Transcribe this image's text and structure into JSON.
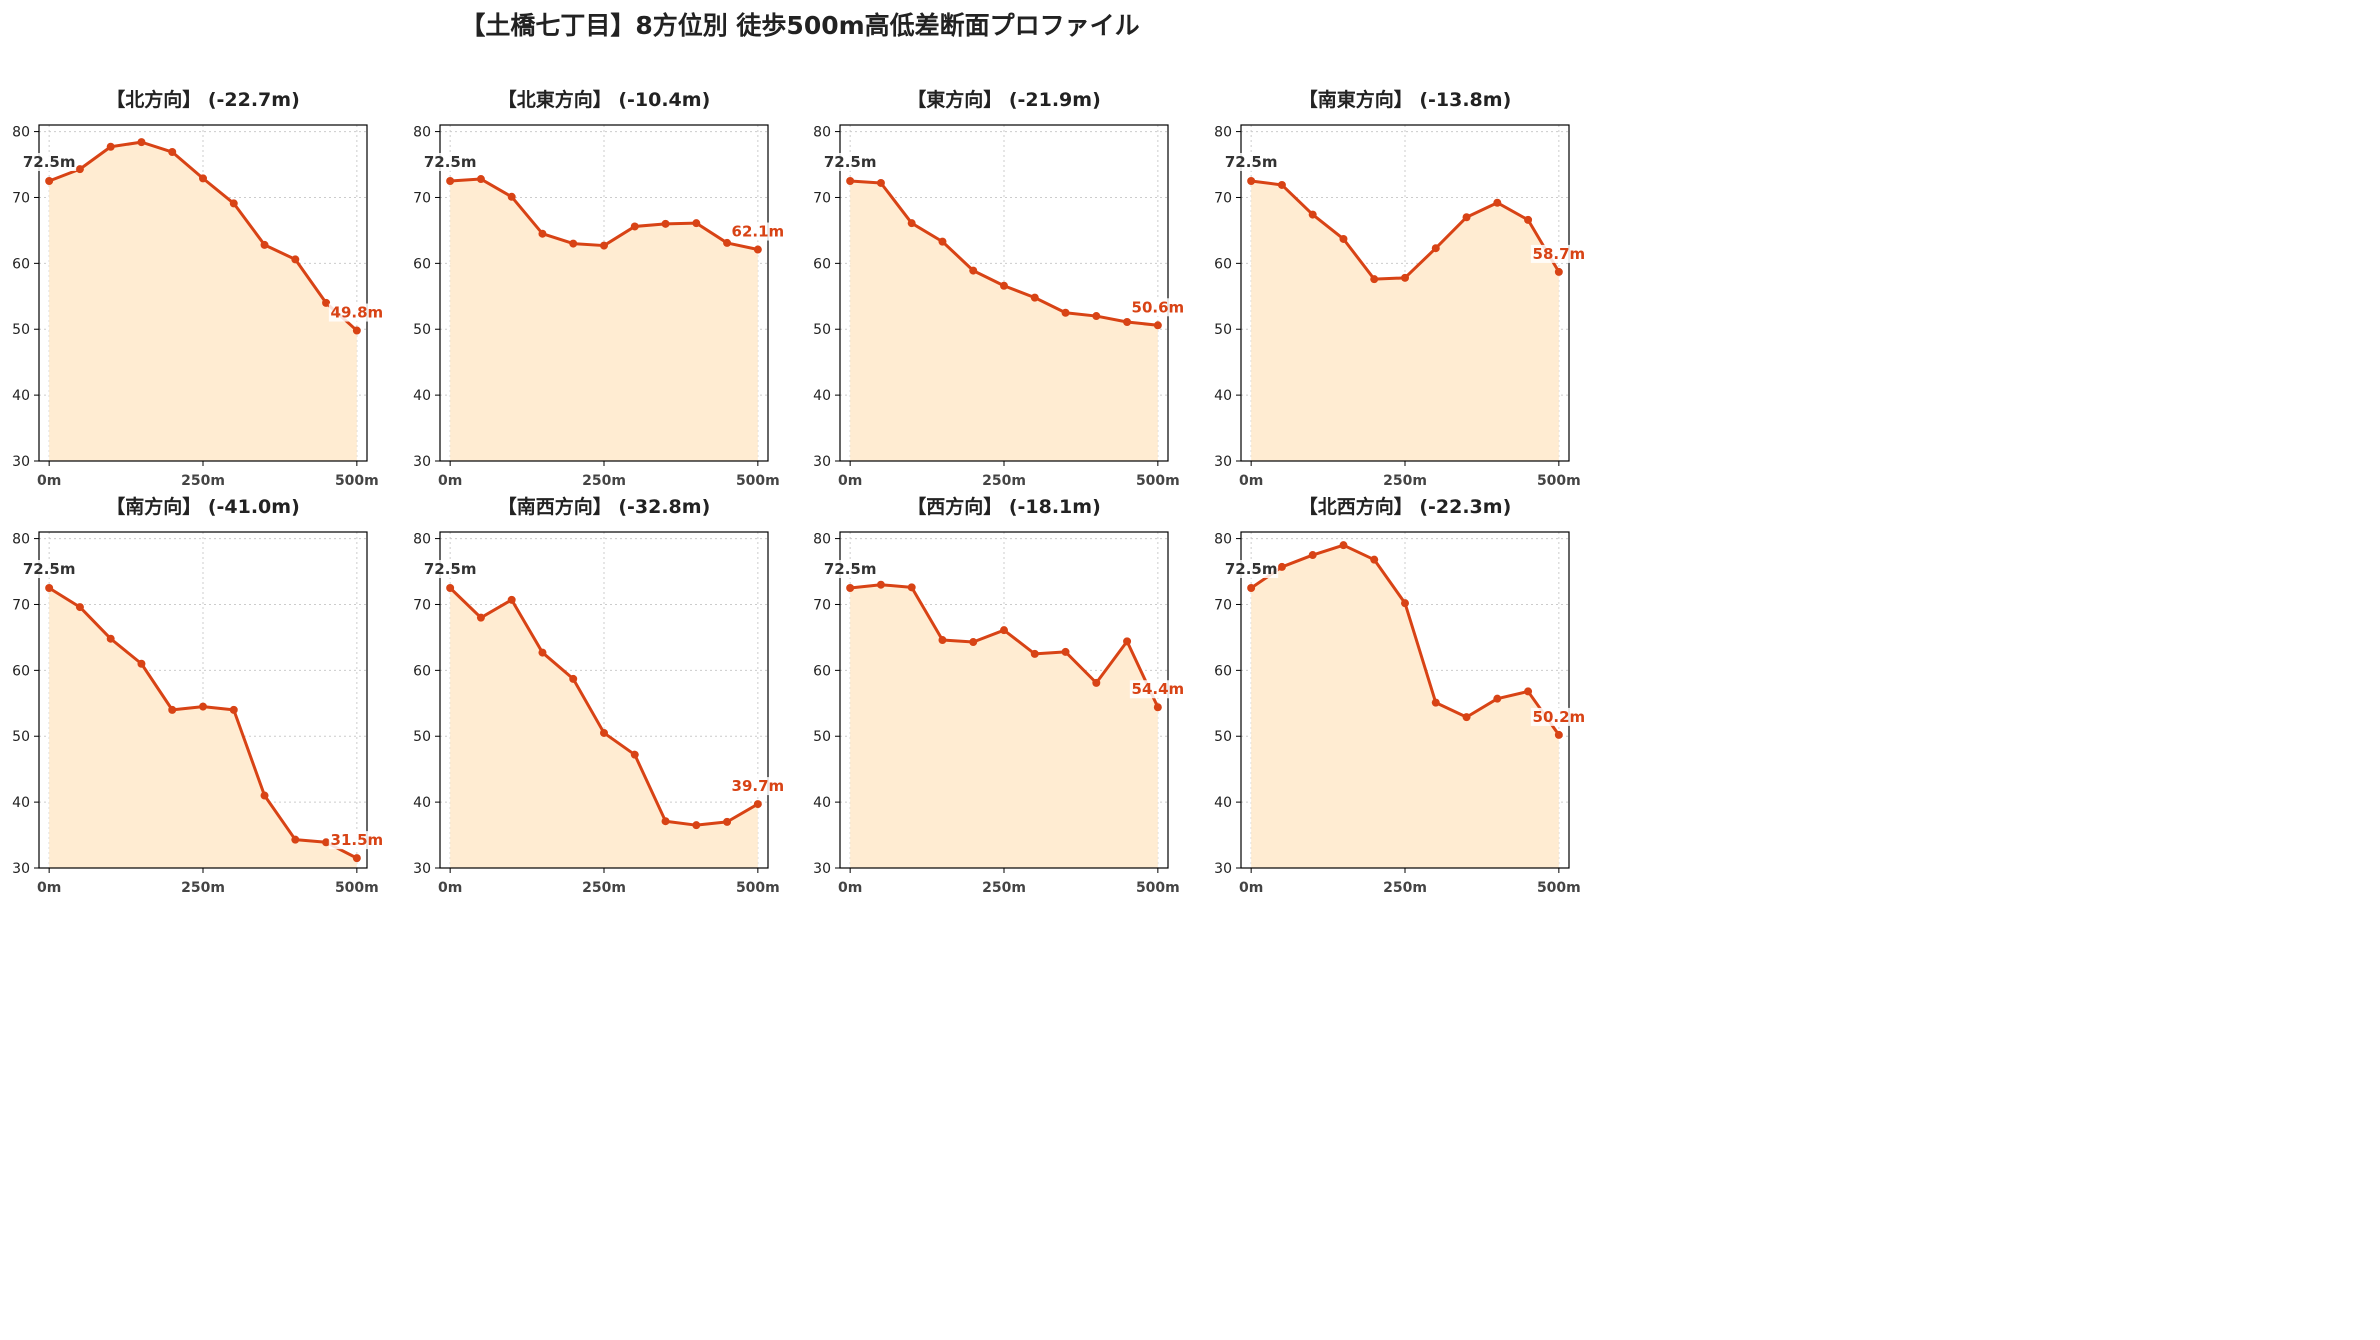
{
  "page": {
    "title": "【土橋七丁目】8方位別 徒歩500m高低差断面プロファイル"
  },
  "colors": {
    "line": "#d84315",
    "fill": "#ffecd2",
    "axis": "#000000",
    "grid": "#cccccc",
    "start_label": "#333333",
    "end_label": "#d84315"
  },
  "chart_data": [
    {
      "type": "area",
      "title": "【北方向】 (-22.7m)",
      "x": [
        0,
        50,
        100,
        150,
        200,
        250,
        300,
        350,
        400,
        450,
        500
      ],
      "values": [
        72.5,
        74.3,
        77.7,
        78.4,
        76.9,
        72.9,
        69.1,
        62.8,
        60.6,
        54.0,
        49.8
      ],
      "start_label": "72.5m",
      "end_label": "49.8m",
      "xticks": [
        "0m",
        "250m",
        "500m"
      ],
      "ylim": [
        30,
        81
      ],
      "yticks": [
        30,
        40,
        50,
        60,
        70,
        80
      ],
      "grid": true
    },
    {
      "type": "area",
      "title": "【北東方向】 (-10.4m)",
      "x": [
        0,
        50,
        100,
        150,
        200,
        250,
        300,
        350,
        400,
        450,
        500
      ],
      "values": [
        72.5,
        72.8,
        70.1,
        64.5,
        63.0,
        62.7,
        65.6,
        66.0,
        66.1,
        63.1,
        62.1
      ],
      "start_label": "72.5m",
      "end_label": "62.1m",
      "xticks": [
        "0m",
        "250m",
        "500m"
      ],
      "ylim": [
        30,
        81
      ],
      "yticks": [
        30,
        40,
        50,
        60,
        70,
        80
      ],
      "grid": true
    },
    {
      "type": "area",
      "title": "【東方向】 (-21.9m)",
      "x": [
        0,
        50,
        100,
        150,
        200,
        250,
        300,
        350,
        400,
        450,
        500
      ],
      "values": [
        72.5,
        72.2,
        66.1,
        63.3,
        58.9,
        56.6,
        54.8,
        52.5,
        52.0,
        51.1,
        50.6
      ],
      "start_label": "72.5m",
      "end_label": "50.6m",
      "xticks": [
        "0m",
        "250m",
        "500m"
      ],
      "ylim": [
        30,
        81
      ],
      "yticks": [
        30,
        40,
        50,
        60,
        70,
        80
      ],
      "grid": true
    },
    {
      "type": "area",
      "title": "【南東方向】 (-13.8m)",
      "x": [
        0,
        50,
        100,
        150,
        200,
        250,
        300,
        350,
        400,
        450,
        500
      ],
      "values": [
        72.5,
        71.9,
        67.4,
        63.7,
        57.6,
        57.8,
        62.3,
        67.0,
        69.2,
        66.6,
        58.7
      ],
      "start_label": "72.5m",
      "end_label": "58.7m",
      "xticks": [
        "0m",
        "250m",
        "500m"
      ],
      "ylim": [
        30,
        81
      ],
      "yticks": [
        30,
        40,
        50,
        60,
        70,
        80
      ],
      "grid": true
    },
    {
      "type": "area",
      "title": "【南方向】 (-41.0m)",
      "x": [
        0,
        50,
        100,
        150,
        200,
        250,
        300,
        350,
        400,
        450,
        500
      ],
      "values": [
        72.5,
        69.6,
        64.8,
        61.0,
        54.0,
        54.5,
        54.0,
        41.0,
        34.3,
        33.9,
        31.5
      ],
      "start_label": "72.5m",
      "end_label": "31.5m",
      "xticks": [
        "0m",
        "250m",
        "500m"
      ],
      "ylim": [
        30,
        81
      ],
      "yticks": [
        30,
        40,
        50,
        60,
        70,
        80
      ],
      "grid": true
    },
    {
      "type": "area",
      "title": "【南西方向】 (-32.8m)",
      "x": [
        0,
        50,
        100,
        150,
        200,
        250,
        300,
        350,
        400,
        450,
        500
      ],
      "values": [
        72.5,
        68.0,
        70.7,
        62.7,
        58.7,
        50.5,
        47.2,
        37.1,
        36.5,
        37.0,
        39.7
      ],
      "start_label": "72.5m",
      "end_label": "39.7m",
      "xticks": [
        "0m",
        "250m",
        "500m"
      ],
      "ylim": [
        30,
        81
      ],
      "yticks": [
        30,
        40,
        50,
        60,
        70,
        80
      ],
      "grid": true
    },
    {
      "type": "area",
      "title": "【西方向】 (-18.1m)",
      "x": [
        0,
        50,
        100,
        150,
        200,
        250,
        300,
        350,
        400,
        450,
        500
      ],
      "values": [
        72.5,
        73.0,
        72.6,
        64.6,
        64.3,
        66.1,
        62.5,
        62.8,
        58.1,
        64.4,
        54.4
      ],
      "start_label": "72.5m",
      "end_label": "54.4m",
      "xticks": [
        "0m",
        "250m",
        "500m"
      ],
      "ylim": [
        30,
        81
      ],
      "yticks": [
        30,
        40,
        50,
        60,
        70,
        80
      ],
      "grid": true
    },
    {
      "type": "area",
      "title": "【北西方向】 (-22.3m)",
      "x": [
        0,
        50,
        100,
        150,
        200,
        250,
        300,
        350,
        400,
        450,
        500
      ],
      "values": [
        72.5,
        75.7,
        77.5,
        79.0,
        76.8,
        70.2,
        55.1,
        52.9,
        55.7,
        56.8,
        50.2
      ],
      "start_label": "72.5m",
      "end_label": "50.2m",
      "xticks": [
        "0m",
        "250m",
        "500m"
      ],
      "ylim": [
        30,
        81
      ],
      "yticks": [
        30,
        40,
        50,
        60,
        70,
        80
      ],
      "grid": true
    }
  ]
}
